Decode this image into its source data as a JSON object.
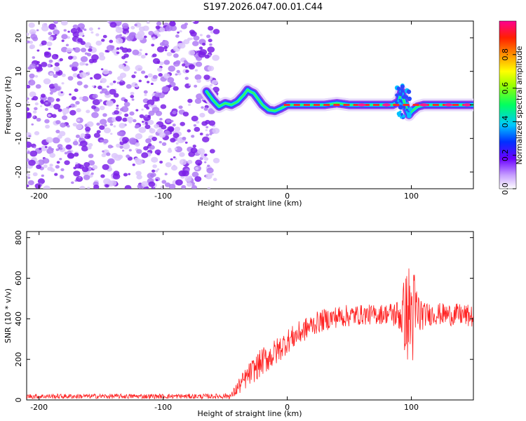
{
  "title": "S197.2026.047.00.01.C44",
  "chart_data": [
    {
      "type": "heatmap",
      "xlabel": "Height of straight line (km)",
      "ylabel": "Frequency (Hz)",
      "xlim": [
        -210,
        150
      ],
      "ylim": [
        -25,
        25
      ],
      "xticks": [
        -200,
        -100,
        0,
        100
      ],
      "xtick_labels": [
        "-200",
        "-100",
        "0",
        "100"
      ],
      "yticks": [
        -20,
        -10,
        0,
        10,
        20
      ],
      "ytick_labels": [
        "-20",
        "-10",
        "0",
        "10",
        "20"
      ],
      "noise_region": [
        -210,
        -60
      ],
      "ridge": {
        "x": [
          -65,
          -60,
          -55,
          -50,
          -45,
          -40,
          -35,
          -32,
          -30,
          -27,
          -25,
          -20,
          -15,
          -10,
          -5,
          0,
          10,
          20,
          30,
          40,
          50,
          60,
          70,
          80,
          85,
          90,
          92,
          95,
          98,
          100,
          105,
          110,
          120,
          130,
          140,
          150
        ],
        "y": [
          4,
          1.5,
          -0.5,
          0.5,
          0,
          1,
          3,
          4.5,
          4,
          3.5,
          2.5,
          0,
          -1.5,
          -1.8,
          -1,
          0,
          0,
          0,
          0,
          0.5,
          0,
          0,
          0,
          0,
          0,
          1,
          4,
          0,
          -3,
          -2,
          -0.5,
          0,
          0,
          0,
          0,
          0
        ],
        "blob_x": [
          60,
          80,
          110,
          130,
          145
        ],
        "blob_y": [
          0,
          0,
          0,
          0,
          0
        ]
      },
      "colorbar": {
        "label": "Normalized spectral amplitude",
        "range": [
          0,
          1
        ],
        "ticks": [
          0,
          0.2,
          0.4,
          0.6,
          0.8
        ],
        "tick_labels": [
          "0.0",
          "0.2",
          "0.4",
          "0.6",
          "0.8"
        ]
      }
    },
    {
      "type": "line",
      "xlabel": "Height of straight line (km)",
      "ylabel": "SNR (10 * v/v)",
      "xlim": [
        -210,
        150
      ],
      "ylim": [
        0,
        830
      ],
      "xticks": [
        -200,
        -100,
        0,
        100
      ],
      "xtick_labels": [
        "-200",
        "-100",
        "0",
        "100"
      ],
      "yticks": [
        0,
        200,
        400,
        600,
        800
      ],
      "ytick_labels": [
        "0",
        "200",
        "400",
        "600",
        "800"
      ],
      "series": [
        {
          "name": "SNR",
          "color": "#ff2020",
          "envelope_x": [
            -210,
            -150,
            -100,
            -60,
            -45,
            -40,
            -30,
            -20,
            -10,
            0,
            10,
            20,
            30,
            40,
            50,
            60,
            70,
            80,
            90,
            95,
            100,
            105,
            110,
            120,
            130,
            140,
            150
          ],
          "envelope_y": [
            18,
            18,
            18,
            18,
            20,
            60,
            130,
            190,
            230,
            290,
            330,
            370,
            395,
            410,
            415,
            420,
            420,
            425,
            420,
            420,
            420,
            420,
            420,
            425,
            420,
            420,
            410
          ],
          "noise_amplitude": [
            12,
            12,
            12,
            12,
            15,
            40,
            60,
            70,
            70,
            60,
            60,
            55,
            55,
            55,
            55,
            50,
            50,
            50,
            80,
            200,
            300,
            150,
            60,
            55,
            55,
            55,
            55
          ]
        }
      ]
    }
  ]
}
